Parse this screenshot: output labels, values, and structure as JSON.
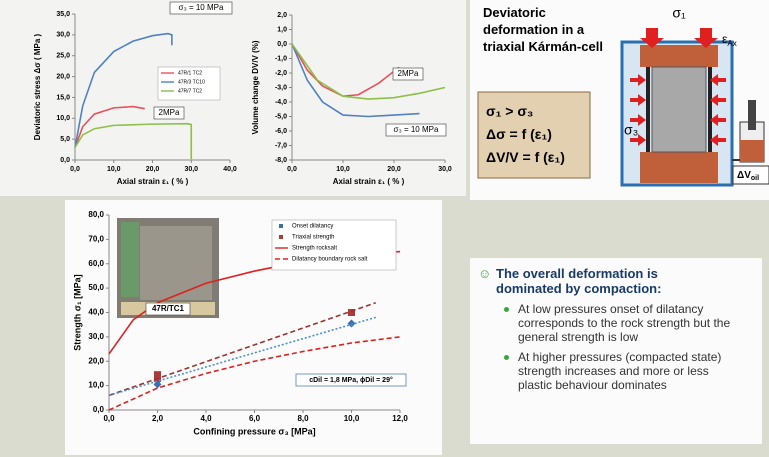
{
  "chart_data": [
    {
      "type": "line",
      "ylabel": "Deviatoric stress Δσ ( MPa )",
      "xlabel": "Axial strain ε₁ ( % )",
      "xlim": [
        0,
        40
      ],
      "ylim": [
        0,
        35
      ],
      "xticks": [
        {
          "value": 0,
          "label": "0,0"
        },
        {
          "value": 10,
          "label": "10,0"
        },
        {
          "value": 20,
          "label": "20,0"
        },
        {
          "value": 30,
          "label": "30,0"
        },
        {
          "value": 40,
          "label": "40,0"
        }
      ],
      "yticks": [
        {
          "value": 0,
          "label": "0,0"
        },
        {
          "value": 5,
          "label": "5,0"
        },
        {
          "value": 10,
          "label": "10,0"
        },
        {
          "value": 15,
          "label": "15,0"
        },
        {
          "value": 20,
          "label": "20,0"
        },
        {
          "value": 25,
          "label": "25,0"
        },
        {
          "value": 30,
          "label": "30,0"
        },
        {
          "value": 35,
          "label": "35,0"
        }
      ],
      "legend": "center-right",
      "annotations": [
        "σ₃ = 10 MPa",
        "2MPa"
      ],
      "series": [
        {
          "name": "47R/1 TC2",
          "color": "#e8515a",
          "style": "line",
          "x": [
            0,
            2,
            5,
            10,
            15,
            18
          ],
          "values": [
            3,
            8,
            11,
            12.5,
            12.8,
            12.3
          ]
        },
        {
          "name": "47R/3 TC10",
          "color": "#4f81c4",
          "style": "line",
          "x": [
            0,
            2,
            5,
            10,
            15,
            20,
            24,
            25,
            25
          ],
          "values": [
            3,
            13,
            21,
            26,
            28.5,
            29.8,
            30.3,
            30,
            27.5
          ]
        },
        {
          "name": "47R/7 TC2",
          "color": "#8fbf4a",
          "style": "line",
          "x": [
            0,
            2,
            5,
            10,
            20,
            29,
            30,
            30
          ],
          "values": [
            3,
            6,
            7.5,
            8.3,
            8.6,
            8.7,
            8.5,
            0.2
          ]
        }
      ]
    },
    {
      "type": "line",
      "ylabel": "Volume change DV/V (%)",
      "xlabel": "Axial strain ε₁ ( % )",
      "xlim": [
        0,
        30
      ],
      "ylim": [
        -8,
        2
      ],
      "xticks": [
        {
          "value": 0,
          "label": "0,0"
        },
        {
          "value": 10,
          "label": "10,0"
        },
        {
          "value": 20,
          "label": "20,0"
        },
        {
          "value": 30,
          "label": "30,0"
        }
      ],
      "yticks": [
        {
          "value": -8,
          "label": "-8,0"
        },
        {
          "value": -7,
          "label": "-7,0"
        },
        {
          "value": -6,
          "label": "-6,0"
        },
        {
          "value": -5,
          "label": "-5,0"
        },
        {
          "value": -4,
          "label": "-4,0"
        },
        {
          "value": -3,
          "label": "-3,0"
        },
        {
          "value": -2,
          "label": "-2,0"
        },
        {
          "value": -1,
          "label": "-1,0"
        },
        {
          "value": 0,
          "label": "0,0"
        },
        {
          "value": 1,
          "label": "1,0"
        },
        {
          "value": 2,
          "label": "2,0"
        }
      ],
      "annotations": [
        "2MPa",
        "σ₃ = 10 MPa"
      ],
      "series": [
        {
          "color": "#e8515a",
          "style": "line",
          "x": [
            0,
            3,
            6,
            10,
            13,
            17,
            21
          ],
          "values": [
            0,
            -1.8,
            -2.9,
            -3.6,
            -3.5,
            -2.7,
            -1.6
          ]
        },
        {
          "color": "#4f81c4",
          "style": "line",
          "x": [
            0,
            3,
            6,
            10,
            15,
            20,
            25
          ],
          "values": [
            0,
            -2.5,
            -4,
            -4.9,
            -5,
            -4.9,
            -4.8
          ]
        },
        {
          "color": "#8fbf4a",
          "style": "line",
          "x": [
            0,
            5,
            10,
            15,
            20,
            25,
            30
          ],
          "values": [
            0,
            -2.5,
            -3.6,
            -3.8,
            -3.7,
            -3.4,
            -3
          ]
        }
      ]
    },
    {
      "type": "scatter",
      "ylabel": "Strength σ₁ [MPa]",
      "xlabel": "Confining pressure σ₃ [MPa]",
      "xlim": [
        0,
        12
      ],
      "ylim": [
        0,
        80
      ],
      "xticks": [
        {
          "value": 0,
          "label": "0,0"
        },
        {
          "value": 2,
          "label": "2,0"
        },
        {
          "value": 4,
          "label": "4,0"
        },
        {
          "value": 6,
          "label": "6,0"
        },
        {
          "value": 8,
          "label": "8,0"
        },
        {
          "value": 10,
          "label": "10,0"
        },
        {
          "value": 12,
          "label": "12,0"
        }
      ],
      "yticks": [
        {
          "value": 0,
          "label": "0,0"
        },
        {
          "value": 10,
          "label": "10,0"
        },
        {
          "value": 20,
          "label": "20,0"
        },
        {
          "value": 30,
          "label": "30,0"
        },
        {
          "value": 40,
          "label": "40,0"
        },
        {
          "value": 50,
          "label": "50,0"
        },
        {
          "value": 60,
          "label": "60,0"
        },
        {
          "value": 70,
          "label": "70,0"
        },
        {
          "value": 80,
          "label": "80,0"
        }
      ],
      "legend": "top-right",
      "annotations": [
        "cDil = 1,8 MPa, ϕDil = 29°",
        "47R/TC1"
      ],
      "series": [
        {
          "name": "Onset dilatancy",
          "color": "#3a6fb0",
          "style": "diamond",
          "x": [
            2,
            2,
            10
          ],
          "values": [
            10.5,
            12,
            35.5
          ]
        },
        {
          "name": "Triaxial strength",
          "color": "#b03a3a",
          "style": "square",
          "x": [
            2,
            2,
            10
          ],
          "values": [
            13,
            14.5,
            40
          ]
        },
        {
          "name": "Strength rocksalt",
          "color": "#e02020",
          "style": "line",
          "x": [
            0,
            1,
            2,
            4,
            6,
            8,
            10,
            12
          ],
          "values": [
            23,
            37,
            44,
            52,
            57,
            61,
            63.5,
            65
          ]
        },
        {
          "name": "Dilatancy boundary rock salt",
          "color": "#e02020",
          "style": "dashed",
          "x": [
            0,
            2,
            4,
            6,
            8,
            10,
            12
          ],
          "values": [
            0,
            9,
            15,
            20,
            24,
            27.5,
            30
          ]
        },
        {
          "color": "#a03030",
          "style": "dashed",
          "x": [
            0,
            11
          ],
          "values": [
            6,
            44
          ]
        },
        {
          "color": "#4a90d0",
          "style": "dotted",
          "x": [
            0,
            11
          ],
          "values": [
            6,
            38
          ]
        }
      ]
    }
  ],
  "cell": {
    "title": "Deviatoric deformation in a triaxial Kármán-cell",
    "formulas": [
      "σ₁ > σ₃",
      "Δσ = f (ε₁)",
      "ΔV/V = f (ε₁)"
    ],
    "labels": {
      "sigma1": "σ₁",
      "eps": "ε",
      "eps_sub": "Ax",
      "sigma3": "σ₃",
      "dv": "ΔV",
      "dv_sub": "oil"
    }
  },
  "summary": {
    "icon": "☺",
    "heading": "The overall deformation is dominated by compaction:",
    "bullets": [
      "At low pressures  onset of dilatancy corresponds to the rock strength but the general strength is low",
      "At higher pressures (compacted state)  strength increases and more or less plastic behaviour dominates"
    ]
  }
}
